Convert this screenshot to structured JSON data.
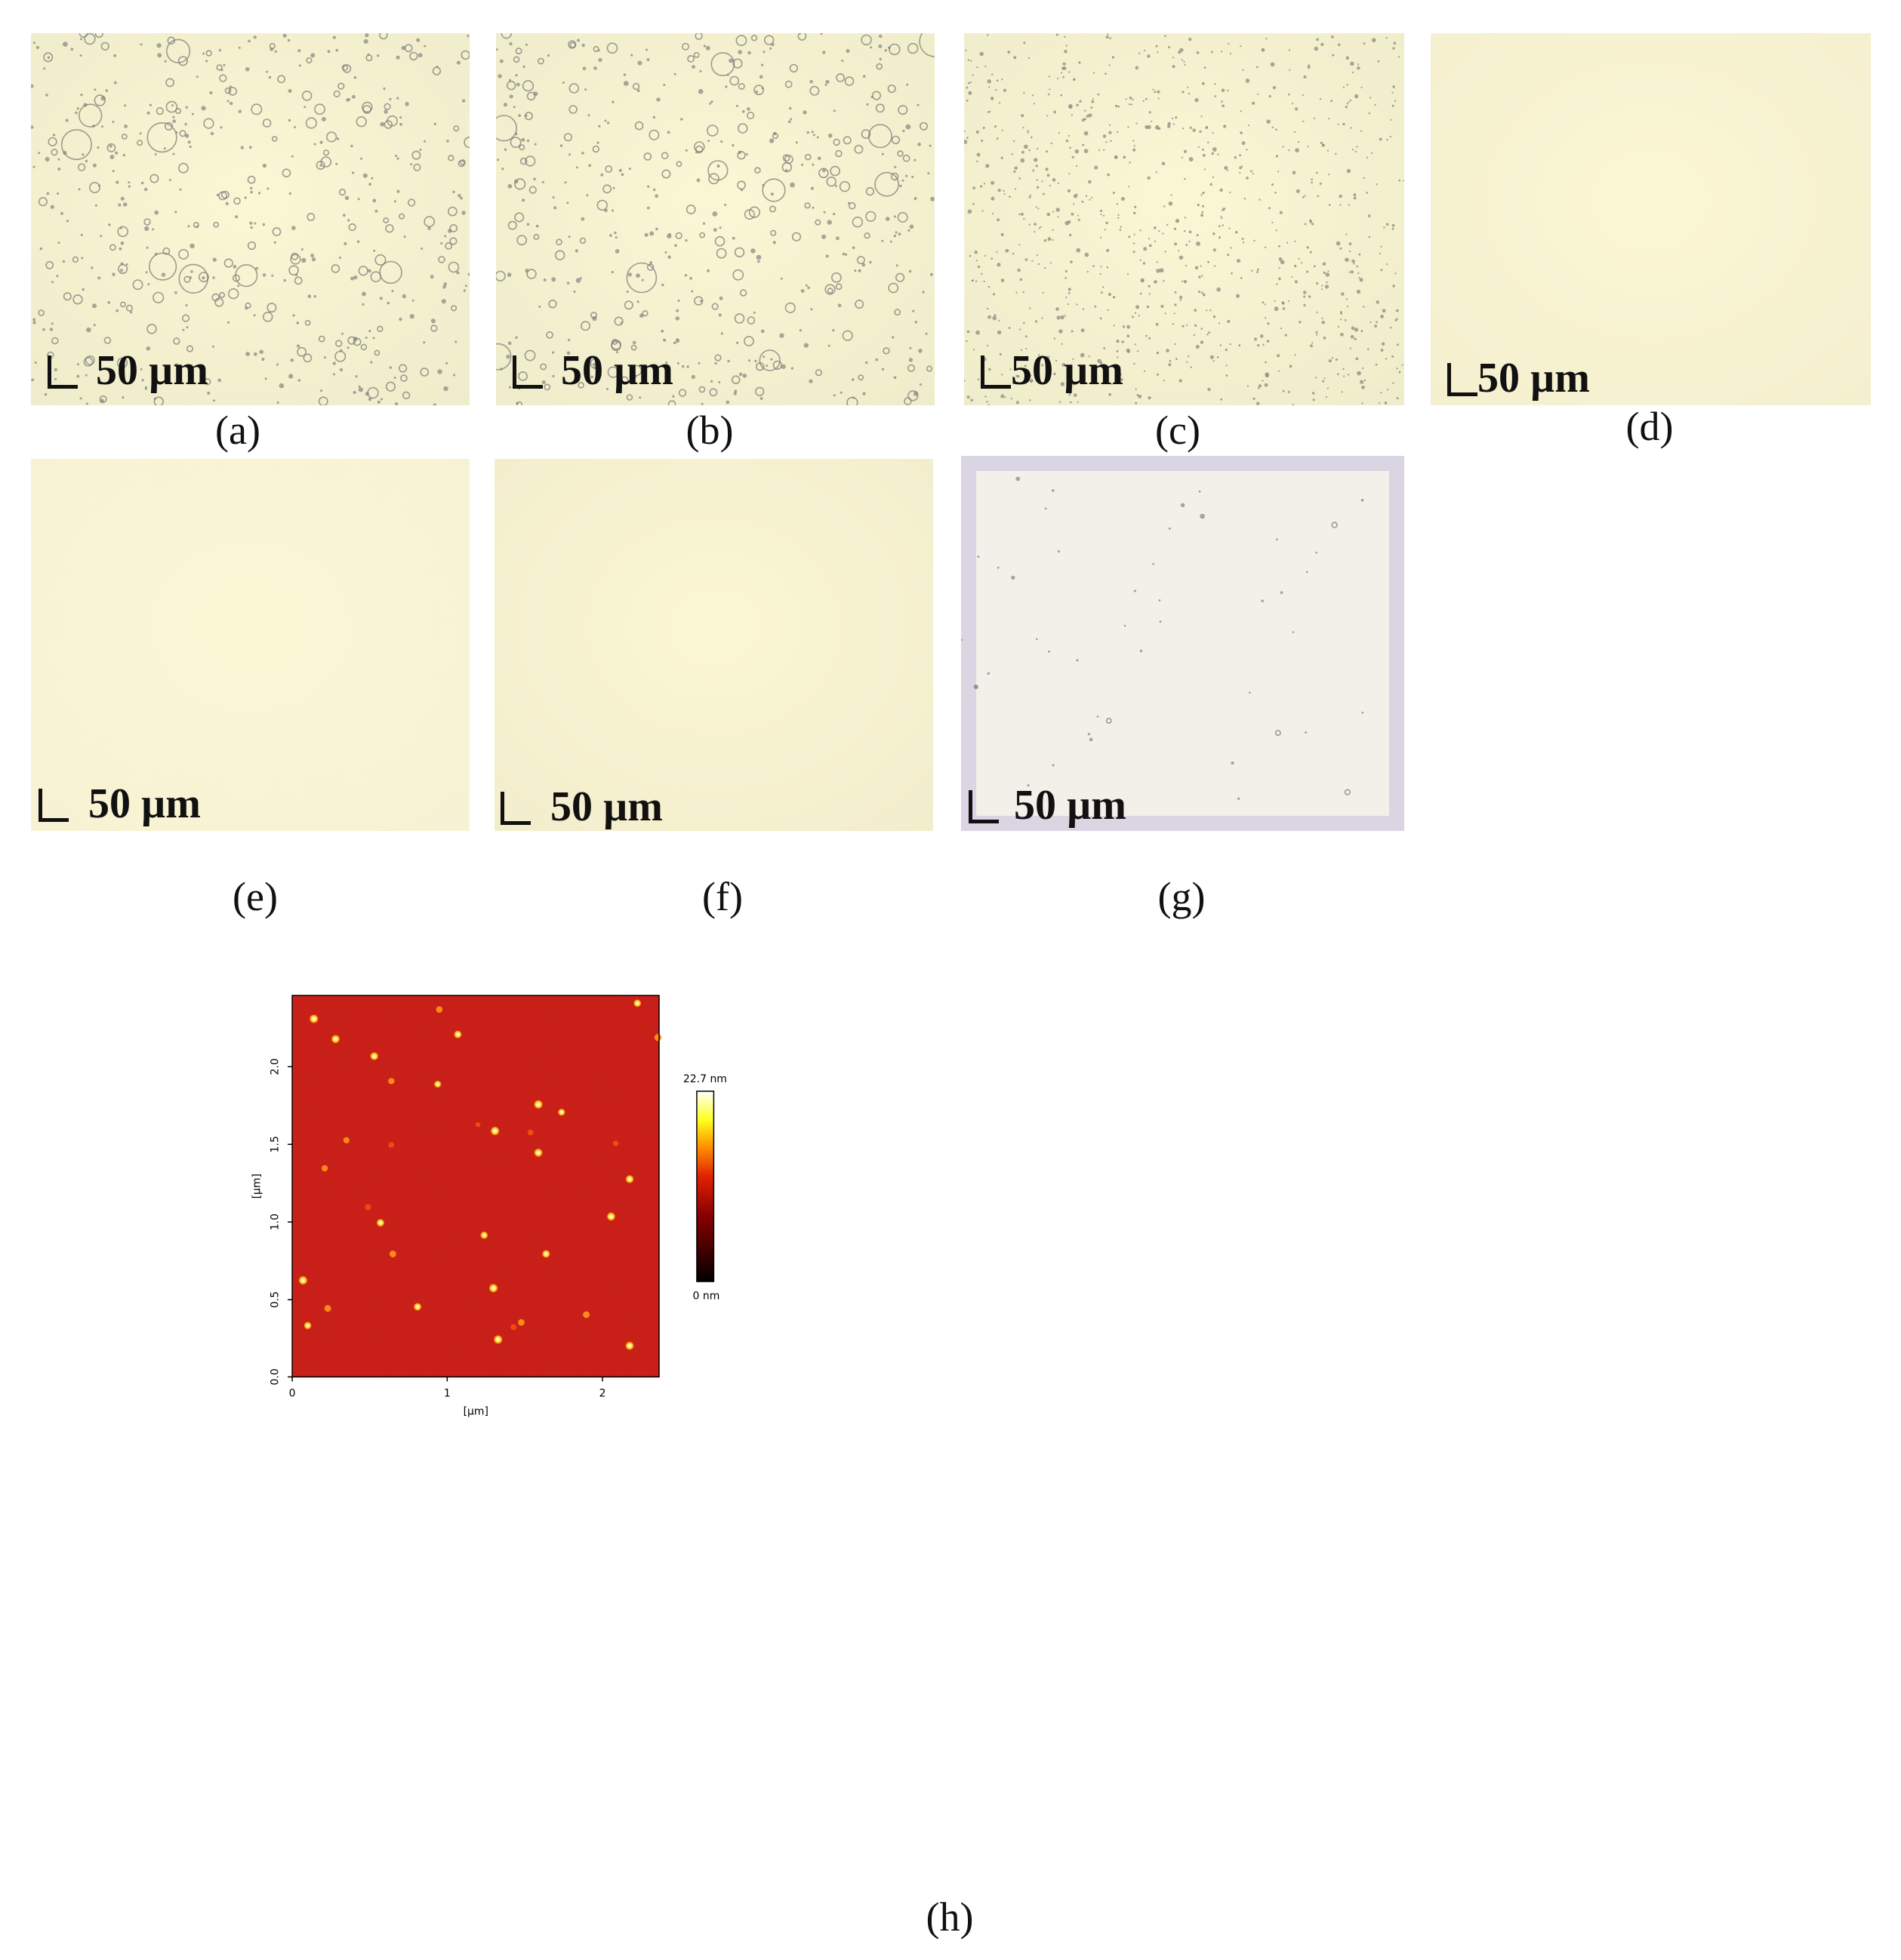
{
  "panels": [
    {
      "id": "a",
      "caption": "(a)",
      "scale_label": "50 µm",
      "texture": "large-droplets",
      "tint": "#efeccb"
    },
    {
      "id": "b",
      "caption": "(b)",
      "scale_label": "50 µm",
      "texture": "large-droplets",
      "tint": "#efeccb"
    },
    {
      "id": "c",
      "caption": "(c)",
      "scale_label": "50 µm",
      "texture": "fine-dots",
      "tint": "#efeccb"
    },
    {
      "id": "d",
      "caption": "(d)",
      "scale_label": "50 µm",
      "texture": "clear",
      "tint": "#f4efce"
    },
    {
      "id": "e",
      "caption": "(e)",
      "scale_label": "50 µm",
      "texture": "clear",
      "tint": "#f6f2d3"
    },
    {
      "id": "f",
      "caption": "(f)",
      "scale_label": "50 µm",
      "texture": "clear",
      "tint": "#f2edcc"
    },
    {
      "id": "g",
      "caption": "(g)",
      "scale_label": "50 µm",
      "texture": "sparse-dots",
      "tint": "#f5efe8"
    }
  ],
  "afm": {
    "caption": "(h)",
    "xlabel": "[µm]",
    "ylabel": "[µm]",
    "x_ticks": [
      "0",
      "1",
      "2"
    ],
    "y_ticks": [
      "0.0",
      "0.5",
      "1.0",
      "1.5",
      "2.0"
    ],
    "colorbar_max": "22.7 nm",
    "colorbar_min": "0 nm",
    "background_color": "#c0140f"
  },
  "chart_data": {
    "type": "heatmap",
    "title": "",
    "xlabel": "[µm]",
    "ylabel": "[µm]",
    "xlim": [
      0,
      2.37
    ],
    "ylim": [
      0,
      2.45
    ],
    "z_range_nm": [
      0,
      22.7
    ],
    "colormap": "afmhot",
    "particles": [
      {
        "x": 0.14,
        "y": 2.3,
        "z": 22
      },
      {
        "x": 0.28,
        "y": 2.17,
        "z": 21
      },
      {
        "x": 0.53,
        "y": 2.06,
        "z": 20
      },
      {
        "x": 1.07,
        "y": 2.2,
        "z": 19
      },
      {
        "x": 0.94,
        "y": 1.88,
        "z": 17
      },
      {
        "x": 0.95,
        "y": 2.36,
        "z": 14
      },
      {
        "x": 2.23,
        "y": 2.4,
        "z": 18
      },
      {
        "x": 2.37,
        "y": 2.18,
        "z": 16
      },
      {
        "x": 0.64,
        "y": 1.9,
        "z": 13
      },
      {
        "x": 1.59,
        "y": 1.75,
        "z": 22
      },
      {
        "x": 1.74,
        "y": 1.7,
        "z": 17
      },
      {
        "x": 1.31,
        "y": 1.58,
        "z": 22
      },
      {
        "x": 1.59,
        "y": 1.44,
        "z": 21
      },
      {
        "x": 1.54,
        "y": 1.57,
        "z": 12
      },
      {
        "x": 2.18,
        "y": 1.27,
        "z": 20
      },
      {
        "x": 2.06,
        "y": 1.03,
        "z": 21
      },
      {
        "x": 0.57,
        "y": 0.99,
        "z": 19
      },
      {
        "x": 1.24,
        "y": 0.91,
        "z": 18
      },
      {
        "x": 0.65,
        "y": 0.79,
        "z": 15
      },
      {
        "x": 1.64,
        "y": 0.79,
        "z": 19
      },
      {
        "x": 0.07,
        "y": 0.62,
        "z": 22
      },
      {
        "x": 1.3,
        "y": 0.57,
        "z": 22
      },
      {
        "x": 0.81,
        "y": 0.45,
        "z": 19
      },
      {
        "x": 0.23,
        "y": 0.44,
        "z": 15
      },
      {
        "x": 0.1,
        "y": 0.33,
        "z": 18
      },
      {
        "x": 1.33,
        "y": 0.24,
        "z": 22
      },
      {
        "x": 2.18,
        "y": 0.2,
        "z": 21
      },
      {
        "x": 1.9,
        "y": 0.4,
        "z": 15
      },
      {
        "x": 1.48,
        "y": 0.35,
        "z": 14
      },
      {
        "x": 1.43,
        "y": 0.32,
        "z": 12
      },
      {
        "x": 0.35,
        "y": 1.52,
        "z": 13
      },
      {
        "x": 0.64,
        "y": 1.49,
        "z": 11
      },
      {
        "x": 0.21,
        "y": 1.34,
        "z": 13
      },
      {
        "x": 0.49,
        "y": 1.09,
        "z": 12
      },
      {
        "x": 2.09,
        "y": 1.5,
        "z": 11
      },
      {
        "x": 1.2,
        "y": 1.62,
        "z": 9
      }
    ]
  }
}
